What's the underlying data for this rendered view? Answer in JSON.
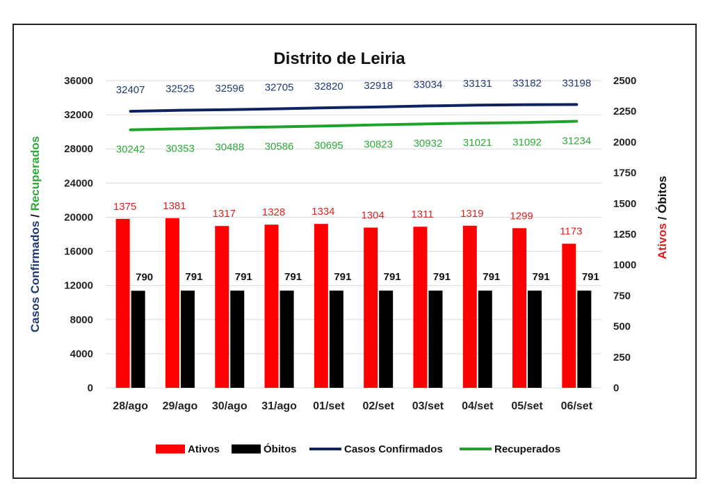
{
  "chart_data": {
    "type": "bar",
    "title": "Distrito de Leiria",
    "categories": [
      "28/ago",
      "29/ago",
      "30/ago",
      "31/ago",
      "01/set",
      "02/set",
      "03/set",
      "04/set",
      "05/set",
      "06/set"
    ],
    "series": [
      {
        "name": "Ativos",
        "axis": "right",
        "kind": "bar",
        "color": "#ff0000",
        "label_color": "#e02020",
        "values": [
          1375,
          1381,
          1317,
          1328,
          1334,
          1304,
          1311,
          1319,
          1299,
          1173
        ]
      },
      {
        "name": "Óbitos",
        "axis": "right",
        "kind": "bar",
        "color": "#000000",
        "label_color": "#111111",
        "values": [
          790,
          791,
          791,
          791,
          791,
          791,
          791,
          791,
          791,
          791
        ]
      },
      {
        "name": "Casos Confirmados",
        "axis": "left",
        "kind": "line",
        "color": "#0d2260",
        "label_color": "#1f3a73",
        "values": [
          32407,
          32525,
          32596,
          32705,
          32820,
          32918,
          33034,
          33131,
          33182,
          33198
        ]
      },
      {
        "name": "Recuperados",
        "axis": "left",
        "kind": "line",
        "color": "#1fa22a",
        "label_color": "#2eaa3a",
        "values": [
          30242,
          30353,
          30488,
          30586,
          30695,
          30823,
          30932,
          31021,
          31092,
          31234
        ]
      }
    ],
    "left_axis": {
      "label_part1": "Casos Confirmados",
      "label_sep": " / ",
      "label_part2": "Recuperados",
      "label_part1_color": "#1f3a73",
      "label_part2_color": "#2eaa3a",
      "ylim": [
        0,
        36000
      ],
      "ticks": [
        "0",
        "4000",
        "8000",
        "12000",
        "16000",
        "20000",
        "24000",
        "28000",
        "32000",
        "36000"
      ]
    },
    "right_axis": {
      "label_part1": "Ativos",
      "label_sep": " / ",
      "label_part2": "Óbitos",
      "label_part1_color": "#e02020",
      "label_part2_color": "#111111",
      "ylim": [
        0,
        2500
      ],
      "ticks": [
        "0",
        "250",
        "500",
        "750",
        "1000",
        "1250",
        "1500",
        "1750",
        "2000",
        "2250",
        "2500"
      ]
    },
    "grid": true,
    "legend_position": "bottom"
  }
}
